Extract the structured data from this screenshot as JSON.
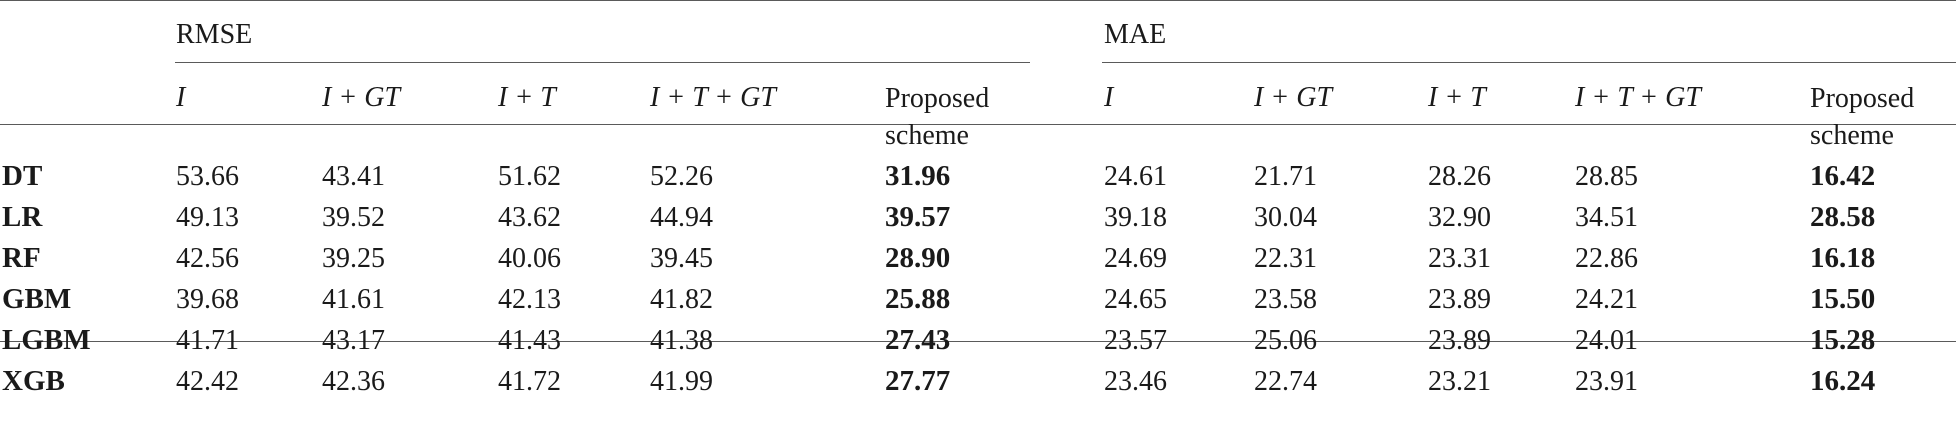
{
  "groups": {
    "rmse": "RMSE",
    "mae": "MAE"
  },
  "subheaders": {
    "rmse": [
      "I",
      "I + GT",
      "I + T",
      "I + T + GT",
      "Proposed scheme"
    ],
    "mae": [
      "I",
      "I + GT",
      "I + T",
      "I + T + GT",
      "Proposed scheme"
    ]
  },
  "rows": [
    {
      "label": "DT",
      "rmse": [
        "53.66",
        "43.41",
        "51.62",
        "52.26",
        "31.96"
      ],
      "mae": [
        "24.61",
        "21.71",
        "28.26",
        "28.85",
        "16.42"
      ]
    },
    {
      "label": "LR",
      "rmse": [
        "49.13",
        "39.52",
        "43.62",
        "44.94",
        "39.57"
      ],
      "mae": [
        "39.18",
        "30.04",
        "32.90",
        "34.51",
        "28.58"
      ]
    },
    {
      "label": "RF",
      "rmse": [
        "42.56",
        "39.25",
        "40.06",
        "39.45",
        "28.90"
      ],
      "mae": [
        "24.69",
        "22.31",
        "23.31",
        "22.86",
        "16.18"
      ]
    },
    {
      "label": "GBM",
      "rmse": [
        "39.68",
        "41.61",
        "42.13",
        "41.82",
        "25.88"
      ],
      "mae": [
        "24.65",
        "23.58",
        "23.89",
        "24.21",
        "15.50"
      ]
    },
    {
      "label": "LGBM",
      "rmse": [
        "41.71",
        "43.17",
        "41.43",
        "41.38",
        "27.43"
      ],
      "mae": [
        "23.57",
        "25.06",
        "23.89",
        "24.01",
        "15.28"
      ]
    },
    {
      "label": "XGB",
      "rmse": [
        "42.42",
        "42.36",
        "41.72",
        "41.99",
        "27.77"
      ],
      "mae": [
        "23.46",
        "22.74",
        "23.21",
        "23.91",
        "16.24"
      ]
    }
  ]
}
